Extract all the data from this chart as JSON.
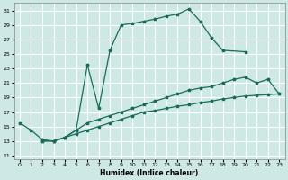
{
  "xlabel": "Humidex (Indice chaleur)",
  "background_color": "#cde8e5",
  "grid_color": "#ffffff",
  "line_color": "#1a6b5a",
  "curve1_x": [
    2,
    3,
    4,
    5,
    6,
    7,
    8,
    9,
    10,
    11,
    12,
    13,
    14,
    15,
    16,
    17,
    18,
    20
  ],
  "curve1_y": [
    13.0,
    13.0,
    13.5,
    14.5,
    23.5,
    17.5,
    25.5,
    29.0,
    29.2,
    29.5,
    29.8,
    30.2,
    30.5,
    31.2,
    29.5,
    27.2,
    25.5,
    25.3
  ],
  "curve2_x": [
    2,
    3,
    4,
    5,
    6,
    7,
    8,
    9,
    10,
    11,
    12,
    13,
    14,
    15,
    16,
    17,
    18,
    19,
    20,
    21,
    22,
    23
  ],
  "curve2_y": [
    13.0,
    13.0,
    13.5,
    14.5,
    15.5,
    16.0,
    16.5,
    17.0,
    17.5,
    18.0,
    18.5,
    19.0,
    19.5,
    20.0,
    20.3,
    20.5,
    21.0,
    21.5,
    21.8,
    21.0,
    21.5,
    19.5
  ],
  "curve3_x": [
    0,
    1,
    2,
    3,
    4,
    5,
    6,
    7,
    8,
    9,
    10,
    11,
    12,
    13,
    14,
    15,
    16,
    17,
    18,
    19,
    20,
    21,
    22,
    23
  ],
  "curve3_y": [
    15.5,
    14.5,
    13.2,
    13.0,
    13.5,
    14.0,
    14.5,
    15.0,
    15.5,
    16.0,
    16.5,
    17.0,
    17.2,
    17.5,
    17.8,
    18.0,
    18.3,
    18.5,
    18.8,
    19.0,
    19.2,
    19.3,
    19.4,
    19.5
  ],
  "ylim": [
    10.5,
    32
  ],
  "yticks": [
    11,
    13,
    15,
    17,
    19,
    21,
    23,
    25,
    27,
    29,
    31
  ],
  "xlim": [
    -0.5,
    23.5
  ],
  "xticks": [
    0,
    1,
    2,
    3,
    4,
    5,
    6,
    7,
    8,
    9,
    10,
    11,
    12,
    13,
    14,
    15,
    16,
    17,
    18,
    19,
    20,
    21,
    22,
    23
  ]
}
